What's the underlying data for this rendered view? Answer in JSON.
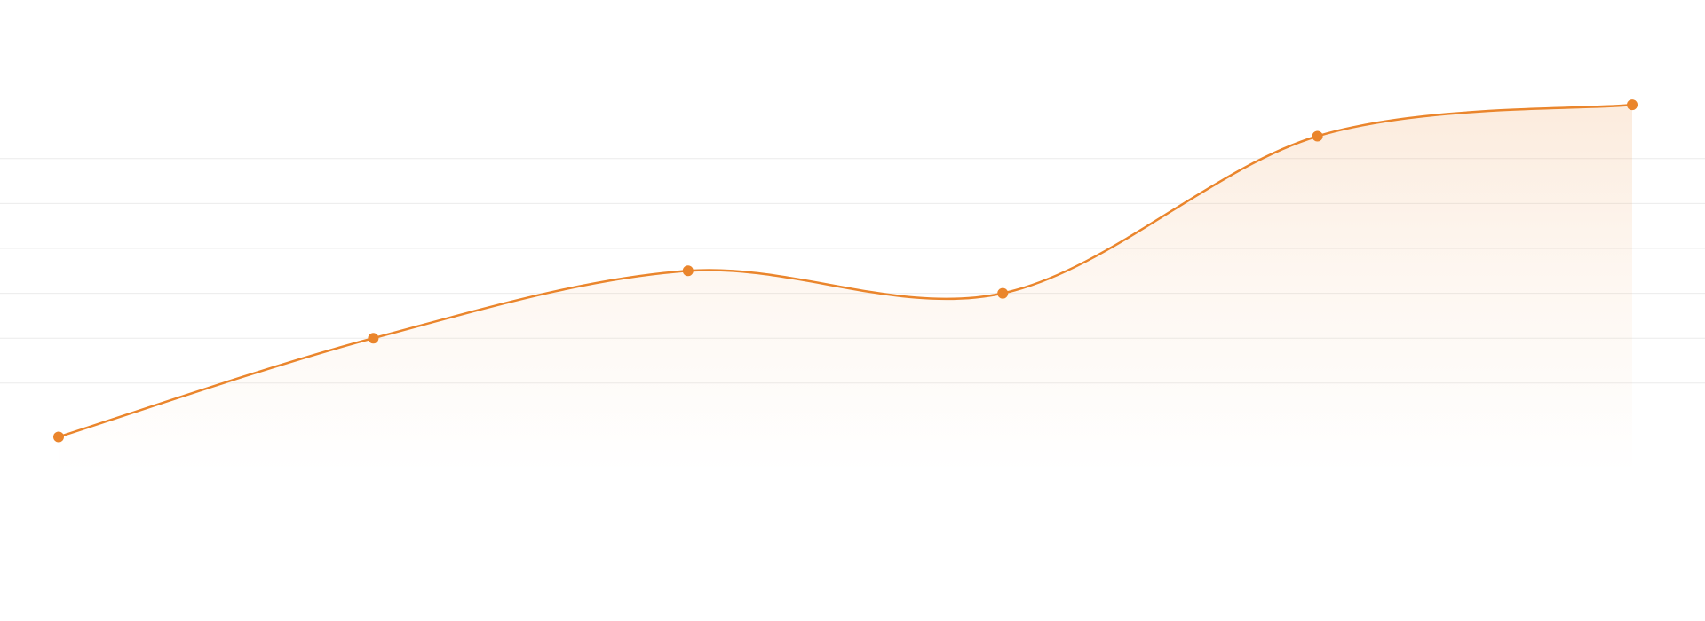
{
  "chart_data": {
    "type": "line",
    "categories": [
      null,
      null,
      null,
      null,
      null,
      null
    ],
    "series": [
      {
        "color": "#ea852c",
        "values": [
          0.8,
          3.0,
          4.5,
          4.0,
          7.5,
          8.2
        ]
      }
    ],
    "ylim": [
      0,
      10
    ],
    "yticks": [
      2,
      3,
      4,
      5,
      6,
      7
    ],
    "grid": true,
    "smooth": true,
    "area": true
  }
}
